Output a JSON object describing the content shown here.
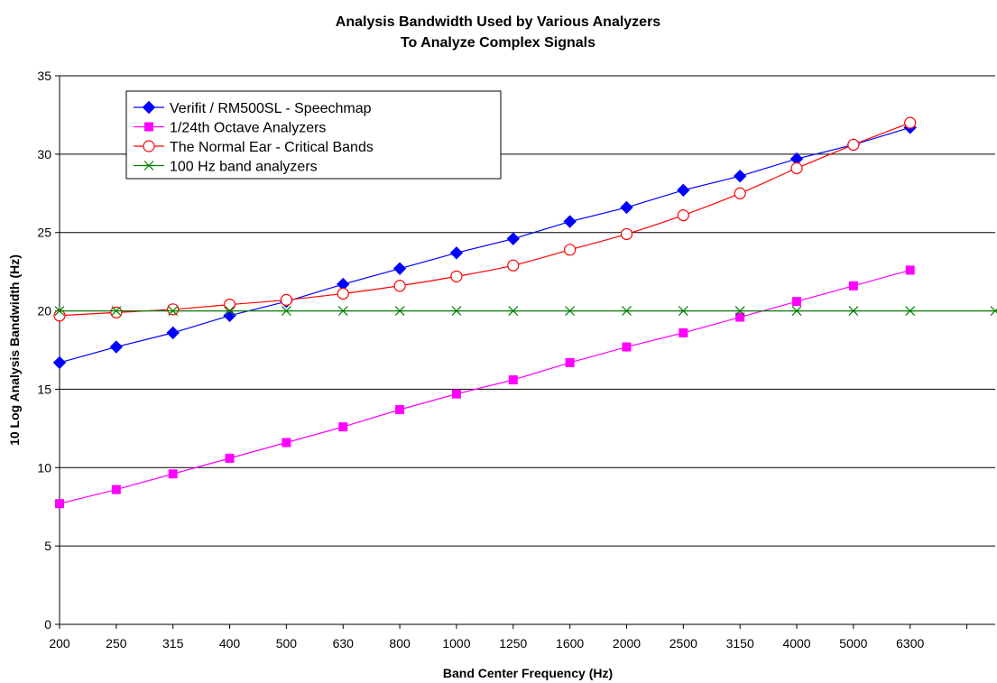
{
  "chart_data": {
    "type": "line",
    "title": [
      "Analysis Bandwidth Used by Various Analyzers",
      "To Analyze Complex Signals"
    ],
    "xlabel": "Band Center Frequency (Hz)",
    "ylabel": "10 Log Analysis Bandwidth (Hz)",
    "categories": [
      "200",
      "250",
      "315",
      "400",
      "500",
      "630",
      "800",
      "1000",
      "1250",
      "1600",
      "2000",
      "2500",
      "3150",
      "4000",
      "5000",
      "6300"
    ],
    "ylim": [
      0,
      35
    ],
    "yticks": [
      "0",
      "5",
      "10",
      "15",
      "20",
      "25",
      "30",
      "35"
    ],
    "grid": true,
    "legend": "top-left",
    "series": [
      {
        "name": "Verifit / RM500SL - Speechmap",
        "color": "#0000ff",
        "marker": "diamond",
        "values": [
          16.7,
          17.7,
          18.6,
          19.7,
          20.6,
          21.7,
          22.7,
          23.7,
          24.6,
          25.7,
          26.6,
          27.7,
          28.6,
          29.7,
          30.6,
          31.7
        ]
      },
      {
        "name": "1/24th Octave Analyzers",
        "color": "#ff00ff",
        "marker": "square",
        "values": [
          7.7,
          8.6,
          9.6,
          10.6,
          11.6,
          12.6,
          13.7,
          14.7,
          15.6,
          16.7,
          17.7,
          18.6,
          19.6,
          20.6,
          21.6,
          22.6
        ]
      },
      {
        "name": "The Normal Ear - Critical Bands",
        "color": "#ff0000",
        "marker": "circle",
        "values": [
          19.7,
          19.9,
          20.1,
          20.4,
          20.7,
          21.1,
          21.6,
          22.2,
          22.9,
          23.9,
          24.9,
          26.1,
          27.5,
          29.1,
          30.6,
          32.0
        ]
      },
      {
        "name": "100 Hz band analyzers",
        "color": "#008000",
        "marker": "asterisk",
        "values": [
          20,
          20,
          20,
          20,
          20,
          20,
          20,
          20,
          20,
          20,
          20,
          20,
          20,
          20,
          20,
          20
        ],
        "extend_to_edge": true
      }
    ]
  }
}
